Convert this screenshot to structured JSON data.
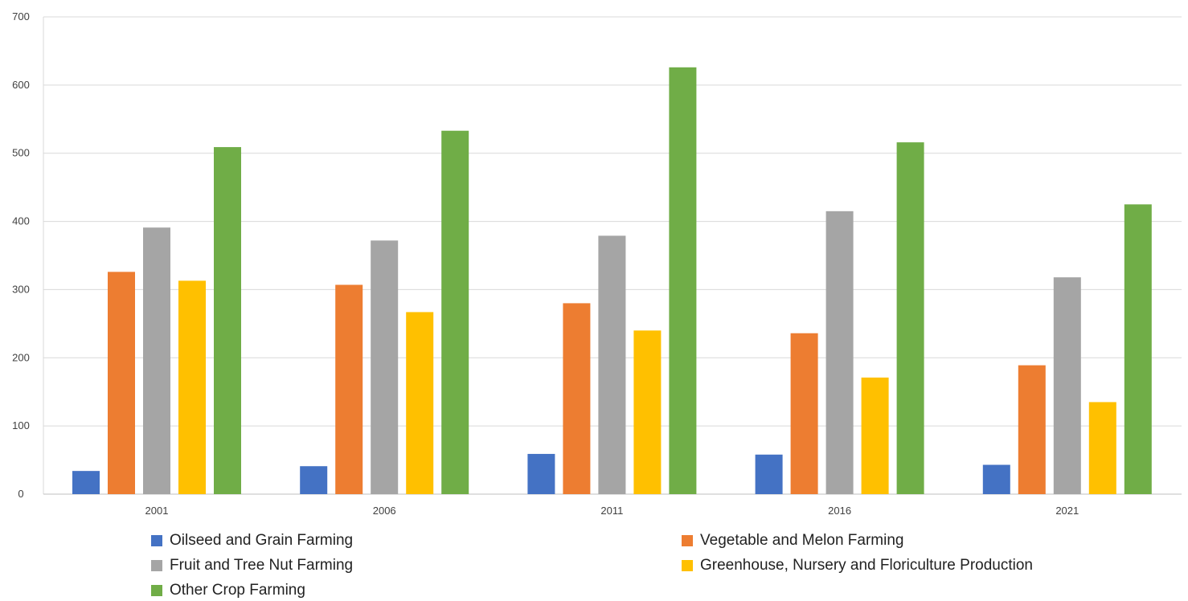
{
  "chart_data": {
    "type": "bar",
    "title": "",
    "xlabel": "",
    "ylabel": "",
    "ylim": [
      0,
      700
    ],
    "yticks": [
      "0",
      "100",
      "200",
      "300",
      "400",
      "500",
      "600",
      "700"
    ],
    "categories": [
      "2001",
      "2006",
      "2011",
      "2016",
      "2021"
    ],
    "grid": true,
    "legend_position": "bottom",
    "series": [
      {
        "name": "Oilseed and Grain Farming",
        "color": "#4472C4",
        "values": [
          34,
          41,
          59,
          58,
          43
        ]
      },
      {
        "name": "Vegetable and Melon Farming",
        "color": "#ED7D31",
        "values": [
          326,
          307,
          280,
          236,
          189
        ]
      },
      {
        "name": "Fruit and Tree Nut Farming",
        "color": "#A5A5A5",
        "values": [
          391,
          372,
          379,
          415,
          318
        ]
      },
      {
        "name": "Greenhouse, Nursery and Floriculture Production",
        "color": "#FFC000",
        "values": [
          313,
          267,
          240,
          171,
          135
        ]
      },
      {
        "name": "Other Crop Farming",
        "color": "#70AD47",
        "values": [
          509,
          533,
          626,
          516,
          425
        ]
      }
    ]
  }
}
